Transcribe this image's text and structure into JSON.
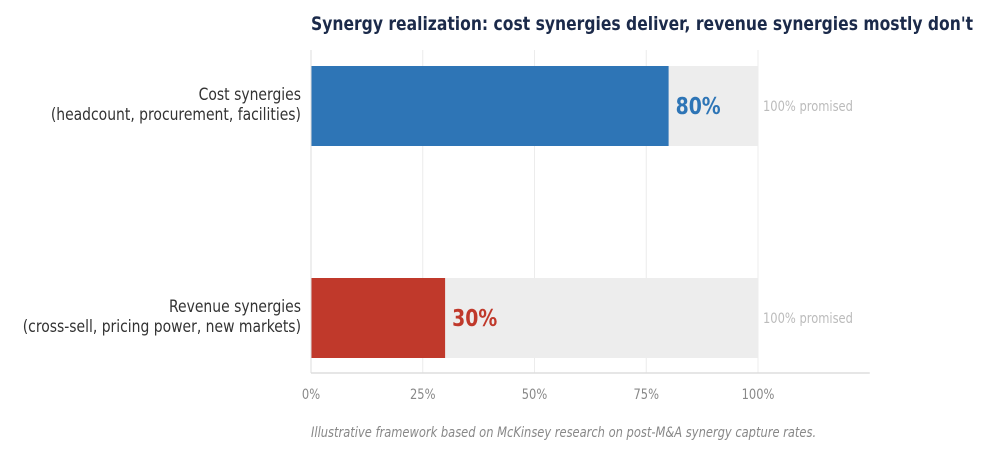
{
  "chart_data": {
    "type": "bar",
    "orientation": "horizontal",
    "title": "Synergy realization: cost synergies deliver, revenue synergies mostly don't",
    "categories": [
      [
        "Cost synergies",
        "(headcount, procurement, facilities)"
      ],
      [
        "Revenue synergies",
        "(cross-sell, pricing power, new markets)"
      ]
    ],
    "values": [
      80,
      30
    ],
    "value_labels": [
      "80%",
      "30%"
    ],
    "background_values": [
      100,
      100
    ],
    "background_labels": [
      "100% promised",
      "100% promised"
    ],
    "bar_colors": [
      "#2e75b6",
      "#c0392b"
    ],
    "background_color": "#ededed",
    "xlim": [
      0,
      125
    ],
    "xticks": [
      0,
      25,
      50,
      75,
      100
    ],
    "xtick_labels": [
      "0%",
      "25%",
      "50%",
      "75%",
      "100%"
    ],
    "xlabel": "",
    "ylabel": "",
    "grid": "vertical",
    "caption": "Illustrative framework based on McKinsey research on post-M&A synergy capture rates."
  }
}
